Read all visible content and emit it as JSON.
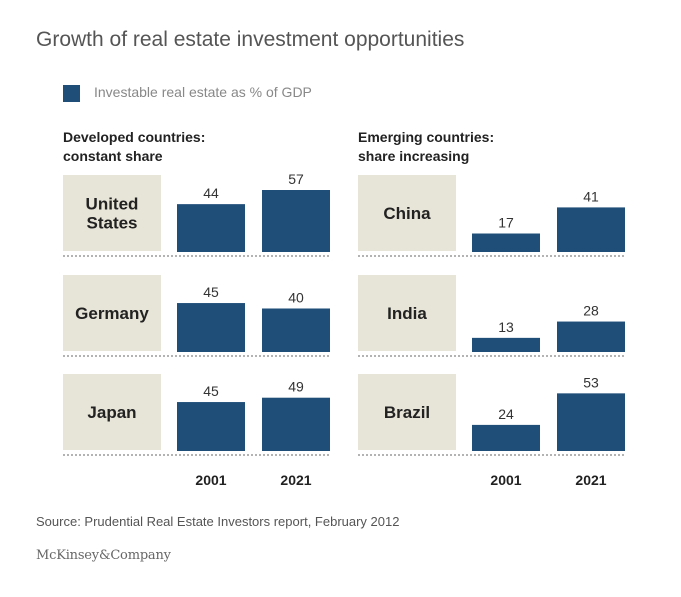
{
  "title": "Growth of real estate investment opportunities",
  "legend": {
    "label": "Investable real estate as % of GDP",
    "color": "#1f4e79"
  },
  "colors": {
    "bar": "#1f4e79",
    "panel": "#e7e4d8",
    "label_text": "#222222"
  },
  "source": "Source: Prudential Real Estate Investors report, February 2012",
  "brand": "McKinsey&Company",
  "chart_data": [
    {
      "type": "bar",
      "group_line1": "Developed countries:",
      "group_line2": "constant share",
      "categories": [
        "2001",
        "2021"
      ],
      "countries": [
        {
          "name_lines": [
            "United",
            "States"
          ],
          "values": [
            44,
            57
          ]
        },
        {
          "name_lines": [
            "Germany"
          ],
          "values": [
            45,
            40
          ]
        },
        {
          "name_lines": [
            "Japan"
          ],
          "values": [
            45,
            49
          ]
        }
      ],
      "ylim": [
        0,
        57
      ]
    },
    {
      "type": "bar",
      "group_line1": "Emerging countries:",
      "group_line2": "share increasing",
      "categories": [
        "2001",
        "2021"
      ],
      "countries": [
        {
          "name_lines": [
            "China"
          ],
          "values": [
            17,
            41
          ]
        },
        {
          "name_lines": [
            "India"
          ],
          "values": [
            13,
            28
          ]
        },
        {
          "name_lines": [
            "Brazil"
          ],
          "values": [
            24,
            53
          ]
        }
      ],
      "ylim": [
        0,
        57
      ]
    }
  ]
}
